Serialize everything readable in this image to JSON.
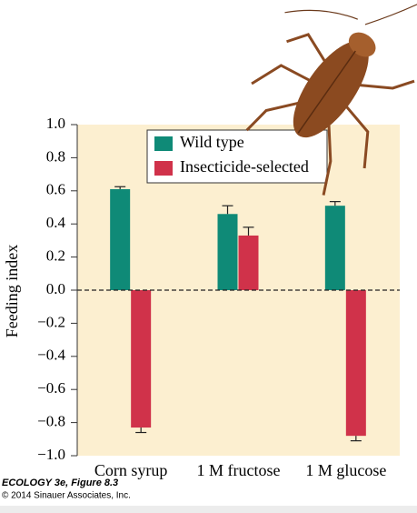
{
  "chart_data": {
    "type": "bar",
    "categories": [
      "Corn syrup",
      "1 M fructose",
      "1 M glucose"
    ],
    "series": [
      {
        "name": "Wild type",
        "color": "#0f8a77",
        "values": [
          0.61,
          0.46,
          0.51
        ],
        "errors": [
          0.015,
          0.05,
          0.025
        ]
      },
      {
        "name": "Insecticide-selected",
        "color": "#d0324a",
        "values": [
          -0.83,
          0.33,
          -0.88
        ],
        "errors": [
          0.03,
          0.05,
          0.03
        ]
      }
    ],
    "y_label": "Feeding index",
    "ylim": [
      -1.0,
      1.0
    ],
    "yticks": [
      {
        "value": -1.0,
        "label": "−1.0"
      },
      {
        "value": -0.8,
        "label": "−0.8"
      },
      {
        "value": -0.6,
        "label": "−0.6"
      },
      {
        "value": -0.4,
        "label": "−0.4"
      },
      {
        "value": -0.2,
        "label": "−0.2"
      },
      {
        "value": 0.0,
        "label": "0.0"
      },
      {
        "value": 0.2,
        "label": "0.2"
      },
      {
        "value": 0.4,
        "label": "0.4"
      },
      {
        "value": 0.6,
        "label": "0.6"
      },
      {
        "value": 0.8,
        "label": "0.8"
      },
      {
        "value": 1.0,
        "label": "1.0"
      }
    ],
    "source": [
      "ECOLOGY 3e, Figure 8.3",
      "© 2014 Sinauer Associates, Inc."
    ]
  }
}
